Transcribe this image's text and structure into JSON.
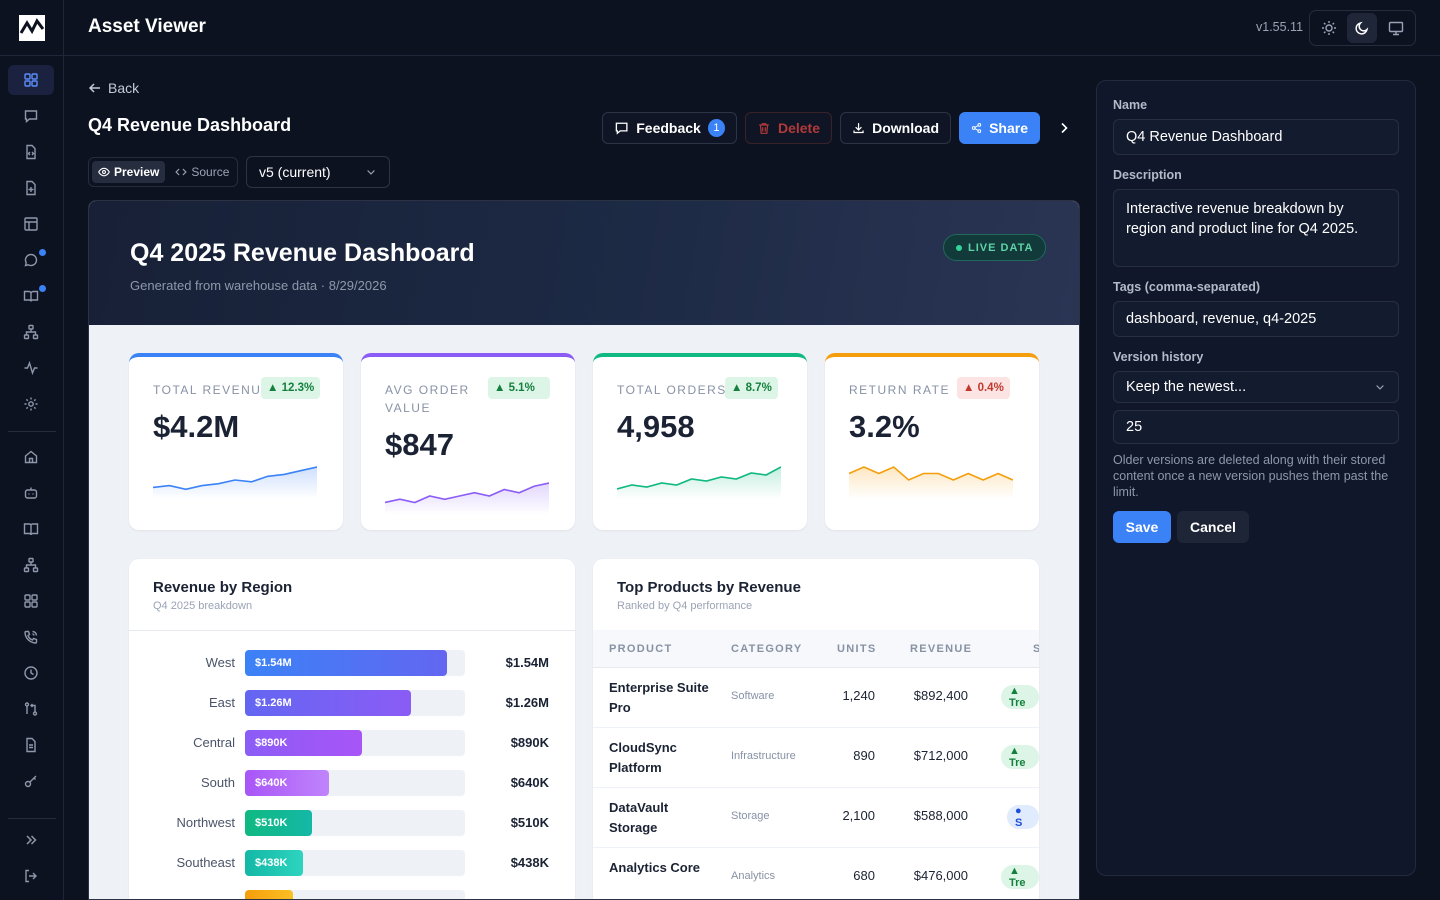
{
  "app": {
    "title": "Asset Viewer",
    "version": "v1.55.11"
  },
  "header": {
    "back_label": "Back",
    "title": "Q4 Revenue Dashboard"
  },
  "toolbar": {
    "feedback_label": "Feedback",
    "feedback_count": "1",
    "delete_label": "Delete",
    "download_label": "Download",
    "share_label": "Share"
  },
  "view": {
    "preview_label": "Preview",
    "source_label": "Source",
    "version_selected": "v5 (current)"
  },
  "dashboard": {
    "title": "Q4 2025 Revenue Dashboard",
    "subtitle": "Generated from warehouse data · 8/29/2026",
    "live_label": "LIVE DATA",
    "kpis": [
      {
        "label": "TOTAL REVENUE",
        "value": "$4.2M",
        "change": "▲ 12.3%",
        "color": "#3b82f6",
        "trend": [
          3,
          4,
          2,
          4,
          5,
          7,
          6,
          9,
          10,
          12,
          14
        ]
      },
      {
        "label": "AVG ORDER VALUE",
        "value": "$847",
        "change": "▲ 5.1%",
        "color": "#8b5cf6",
        "trend": [
          4,
          5,
          4,
          6,
          5,
          6,
          7,
          6,
          8,
          7,
          9,
          10
        ]
      },
      {
        "label": "TOTAL ORDERS",
        "value": "4,958",
        "change": "▲ 8.7%",
        "color": "#10b981",
        "trend": [
          3,
          5,
          4,
          6,
          5,
          8,
          7,
          9,
          8,
          11,
          10,
          14
        ]
      },
      {
        "label": "RETURN RATE",
        "value": "3.2%",
        "change": "▲ 0.4%",
        "color": "#f59e0b",
        "trend": [
          6,
          7,
          6,
          7,
          5,
          6,
          6,
          5,
          6,
          5,
          6,
          5
        ]
      }
    ],
    "region_card": {
      "title": "Revenue by Region",
      "subtitle": "Q4 2025 breakdown",
      "rows": [
        {
          "name": "West",
          "label": "$1.54M",
          "value": 1.54,
          "c1": "#3b82f6",
          "c2": "#6366f1"
        },
        {
          "name": "East",
          "label": "$1.26M",
          "value": 1.26,
          "c1": "#6366f1",
          "c2": "#8b5cf6"
        },
        {
          "name": "Central",
          "label": "$890K",
          "value": 0.89,
          "c1": "#8b5cf6",
          "c2": "#a855f7"
        },
        {
          "name": "South",
          "label": "$640K",
          "value": 0.64,
          "c1": "#a855f7",
          "c2": "#c084fc"
        },
        {
          "name": "Northwest",
          "label": "$510K",
          "value": 0.51,
          "c1": "#10b981",
          "c2": "#14b8a6"
        },
        {
          "name": "Southeast",
          "label": "$438K",
          "value": 0.438,
          "c1": "#14b8a6",
          "c2": "#2dd4bf"
        }
      ]
    },
    "products_card": {
      "title": "Top Products by Revenue",
      "subtitle": "Ranked by Q4 performance",
      "columns": [
        "PRODUCT",
        "CATEGORY",
        "UNITS",
        "REVENUE",
        "S"
      ],
      "rows": [
        {
          "name": "Enterprise Suite Pro",
          "category": "Software",
          "units": "1,240",
          "revenue": "$892,400",
          "status": "▲ Tre",
          "status_type": "trend"
        },
        {
          "name": "CloudSync Platform",
          "category": "Infrastructure",
          "units": "890",
          "revenue": "$712,000",
          "status": "▲ Tre",
          "status_type": "trend"
        },
        {
          "name": "DataVault Storage",
          "category": "Storage",
          "units": "2,100",
          "revenue": "$588,000",
          "status": "● S",
          "status_type": "stable"
        },
        {
          "name": "Analytics Core",
          "category": "Analytics",
          "units": "680",
          "revenue": "$476,000",
          "status": "▲ Tre",
          "status_type": "trend"
        }
      ]
    }
  },
  "panel": {
    "name_label": "Name",
    "name_value": "Q4 Revenue Dashboard",
    "description_label": "Description",
    "description_value": "Interactive revenue breakdown by region and product line for Q4 2025.",
    "tags_label": "Tags (comma-separated)",
    "tags_value": "dashboard, revenue, q4-2025",
    "history_label": "Version history",
    "history_option": "Keep the newest...",
    "history_count": "25",
    "history_help": "Older versions are deleted along with their stored content once a new version pushes them past the limit.",
    "save_label": "Save",
    "cancel_label": "Cancel"
  }
}
